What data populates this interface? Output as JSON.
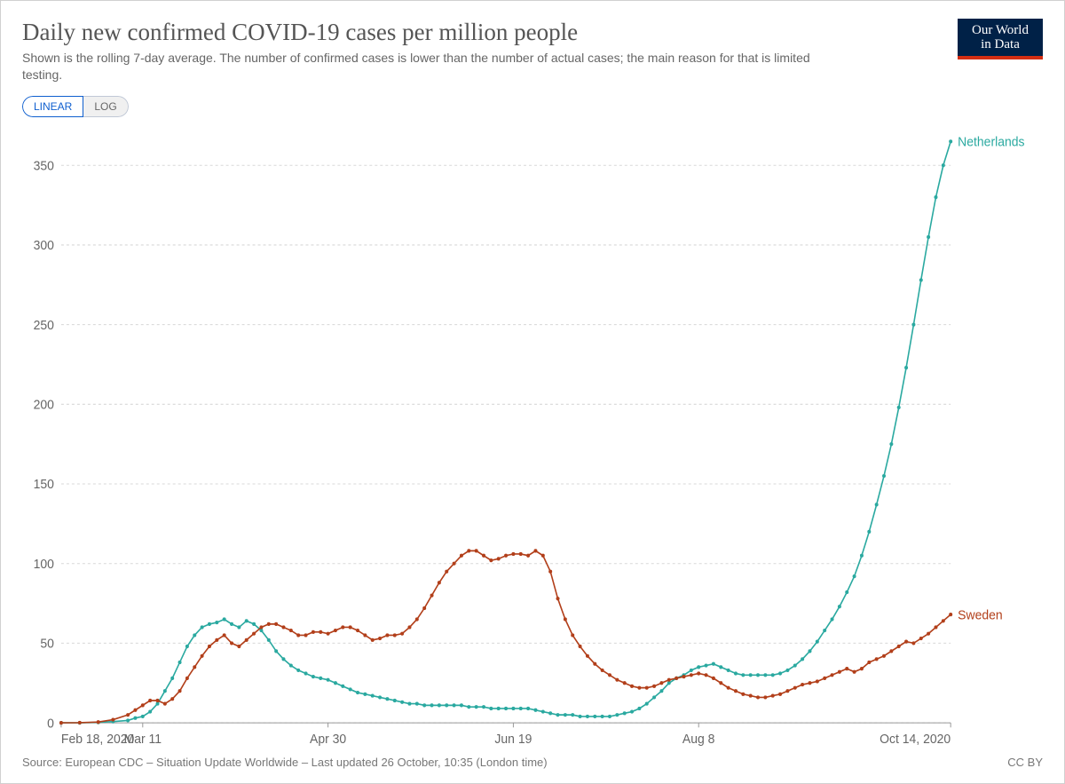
{
  "header": {
    "title": "Daily new confirmed COVID-19 cases per million people",
    "subtitle": "Shown is the rolling 7-day average. The number of confirmed cases is lower than the number of actual cases; the main reason for that is limited testing.",
    "logo_line1": "Our World",
    "logo_line2": "in Data"
  },
  "controls": {
    "scale_options": [
      "LINEAR",
      "LOG"
    ],
    "scale_active": "LINEAR"
  },
  "chart": {
    "type": "line",
    "background_color": "#ffffff",
    "grid_color": "#d8d8d8",
    "axis_text_color": "#666666",
    "axis_fontsize": 14,
    "line_width": 1.6,
    "marker_radius": 2.0,
    "y": {
      "min": 0,
      "max": 370,
      "ticks": [
        0,
        50,
        100,
        150,
        200,
        250,
        300,
        350
      ]
    },
    "x": {
      "min": 0,
      "max": 240,
      "ticks": [
        {
          "pos": 0,
          "label": "Feb 18, 2020"
        },
        {
          "pos": 22,
          "label": "Mar 11"
        },
        {
          "pos": 72,
          "label": "Apr 30"
        },
        {
          "pos": 122,
          "label": "Jun 19"
        },
        {
          "pos": 172,
          "label": "Aug 8"
        },
        {
          "pos": 240,
          "label": "Oct 14, 2020"
        }
      ]
    },
    "series": [
      {
        "name": "Netherlands",
        "color": "#2aa9a0",
        "label_color": "#2aa9a0",
        "data": [
          [
            0,
            0
          ],
          [
            5,
            0
          ],
          [
            10,
            0.3
          ],
          [
            14,
            0.8
          ],
          [
            18,
            1.5
          ],
          [
            20,
            3
          ],
          [
            22,
            4
          ],
          [
            24,
            7
          ],
          [
            26,
            12
          ],
          [
            28,
            20
          ],
          [
            30,
            28
          ],
          [
            32,
            38
          ],
          [
            34,
            48
          ],
          [
            36,
            55
          ],
          [
            38,
            60
          ],
          [
            40,
            62
          ],
          [
            42,
            63
          ],
          [
            44,
            65
          ],
          [
            46,
            62
          ],
          [
            48,
            60
          ],
          [
            50,
            64
          ],
          [
            52,
            62
          ],
          [
            54,
            58
          ],
          [
            56,
            52
          ],
          [
            58,
            45
          ],
          [
            60,
            40
          ],
          [
            62,
            36
          ],
          [
            64,
            33
          ],
          [
            66,
            31
          ],
          [
            68,
            29
          ],
          [
            70,
            28
          ],
          [
            72,
            27
          ],
          [
            74,
            25
          ],
          [
            76,
            23
          ],
          [
            78,
            21
          ],
          [
            80,
            19
          ],
          [
            82,
            18
          ],
          [
            84,
            17
          ],
          [
            86,
            16
          ],
          [
            88,
            15
          ],
          [
            90,
            14
          ],
          [
            92,
            13
          ],
          [
            94,
            12
          ],
          [
            96,
            12
          ],
          [
            98,
            11
          ],
          [
            100,
            11
          ],
          [
            102,
            11
          ],
          [
            104,
            11
          ],
          [
            106,
            11
          ],
          [
            108,
            11
          ],
          [
            110,
            10
          ],
          [
            112,
            10
          ],
          [
            114,
            10
          ],
          [
            116,
            9
          ],
          [
            118,
            9
          ],
          [
            120,
            9
          ],
          [
            122,
            9
          ],
          [
            124,
            9
          ],
          [
            126,
            9
          ],
          [
            128,
            8
          ],
          [
            130,
            7
          ],
          [
            132,
            6
          ],
          [
            134,
            5
          ],
          [
            136,
            5
          ],
          [
            138,
            5
          ],
          [
            140,
            4
          ],
          [
            142,
            4
          ],
          [
            144,
            4
          ],
          [
            146,
            4
          ],
          [
            148,
            4
          ],
          [
            150,
            5
          ],
          [
            152,
            6
          ],
          [
            154,
            7
          ],
          [
            156,
            9
          ],
          [
            158,
            12
          ],
          [
            160,
            16
          ],
          [
            162,
            20
          ],
          [
            164,
            25
          ],
          [
            166,
            28
          ],
          [
            168,
            30
          ],
          [
            170,
            33
          ],
          [
            172,
            35
          ],
          [
            174,
            36
          ],
          [
            176,
            37
          ],
          [
            178,
            35
          ],
          [
            180,
            33
          ],
          [
            182,
            31
          ],
          [
            184,
            30
          ],
          [
            186,
            30
          ],
          [
            188,
            30
          ],
          [
            190,
            30
          ],
          [
            192,
            30
          ],
          [
            194,
            31
          ],
          [
            196,
            33
          ],
          [
            198,
            36
          ],
          [
            200,
            40
          ],
          [
            202,
            45
          ],
          [
            204,
            51
          ],
          [
            206,
            58
          ],
          [
            208,
            65
          ],
          [
            210,
            73
          ],
          [
            212,
            82
          ],
          [
            214,
            92
          ],
          [
            216,
            105
          ],
          [
            218,
            120
          ],
          [
            220,
            137
          ],
          [
            222,
            155
          ],
          [
            224,
            175
          ],
          [
            226,
            198
          ],
          [
            228,
            223
          ],
          [
            230,
            250
          ],
          [
            232,
            278
          ],
          [
            234,
            305
          ],
          [
            236,
            330
          ],
          [
            238,
            350
          ],
          [
            240,
            365
          ]
        ]
      },
      {
        "name": "Sweden",
        "color": "#b23f1a",
        "label_color": "#b23f1a",
        "data": [
          [
            0,
            0
          ],
          [
            5,
            0.1
          ],
          [
            10,
            0.5
          ],
          [
            14,
            2
          ],
          [
            18,
            5
          ],
          [
            20,
            8
          ],
          [
            22,
            11
          ],
          [
            24,
            14
          ],
          [
            26,
            14
          ],
          [
            28,
            12
          ],
          [
            30,
            15
          ],
          [
            32,
            20
          ],
          [
            34,
            28
          ],
          [
            36,
            35
          ],
          [
            38,
            42
          ],
          [
            40,
            48
          ],
          [
            42,
            52
          ],
          [
            44,
            55
          ],
          [
            46,
            50
          ],
          [
            48,
            48
          ],
          [
            50,
            52
          ],
          [
            52,
            56
          ],
          [
            54,
            60
          ],
          [
            56,
            62
          ],
          [
            58,
            62
          ],
          [
            60,
            60
          ],
          [
            62,
            58
          ],
          [
            64,
            55
          ],
          [
            66,
            55
          ],
          [
            68,
            57
          ],
          [
            70,
            57
          ],
          [
            72,
            56
          ],
          [
            74,
            58
          ],
          [
            76,
            60
          ],
          [
            78,
            60
          ],
          [
            80,
            58
          ],
          [
            82,
            55
          ],
          [
            84,
            52
          ],
          [
            86,
            53
          ],
          [
            88,
            55
          ],
          [
            90,
            55
          ],
          [
            92,
            56
          ],
          [
            94,
            60
          ],
          [
            96,
            65
          ],
          [
            98,
            72
          ],
          [
            100,
            80
          ],
          [
            102,
            88
          ],
          [
            104,
            95
          ],
          [
            106,
            100
          ],
          [
            108,
            105
          ],
          [
            110,
            108
          ],
          [
            112,
            108
          ],
          [
            114,
            105
          ],
          [
            116,
            102
          ],
          [
            118,
            103
          ],
          [
            120,
            105
          ],
          [
            122,
            106
          ],
          [
            124,
            106
          ],
          [
            126,
            105
          ],
          [
            128,
            108
          ],
          [
            130,
            105
          ],
          [
            132,
            95
          ],
          [
            134,
            78
          ],
          [
            136,
            65
          ],
          [
            138,
            55
          ],
          [
            140,
            48
          ],
          [
            142,
            42
          ],
          [
            144,
            37
          ],
          [
            146,
            33
          ],
          [
            148,
            30
          ],
          [
            150,
            27
          ],
          [
            152,
            25
          ],
          [
            154,
            23
          ],
          [
            156,
            22
          ],
          [
            158,
            22
          ],
          [
            160,
            23
          ],
          [
            162,
            25
          ],
          [
            164,
            27
          ],
          [
            166,
            28
          ],
          [
            168,
            29
          ],
          [
            170,
            30
          ],
          [
            172,
            31
          ],
          [
            174,
            30
          ],
          [
            176,
            28
          ],
          [
            178,
            25
          ],
          [
            180,
            22
          ],
          [
            182,
            20
          ],
          [
            184,
            18
          ],
          [
            186,
            17
          ],
          [
            188,
            16
          ],
          [
            190,
            16
          ],
          [
            192,
            17
          ],
          [
            194,
            18
          ],
          [
            196,
            20
          ],
          [
            198,
            22
          ],
          [
            200,
            24
          ],
          [
            202,
            25
          ],
          [
            204,
            26
          ],
          [
            206,
            28
          ],
          [
            208,
            30
          ],
          [
            210,
            32
          ],
          [
            212,
            34
          ],
          [
            214,
            32
          ],
          [
            216,
            34
          ],
          [
            218,
            38
          ],
          [
            220,
            40
          ],
          [
            222,
            42
          ],
          [
            224,
            45
          ],
          [
            226,
            48
          ],
          [
            228,
            51
          ],
          [
            230,
            50
          ],
          [
            232,
            53
          ],
          [
            234,
            56
          ],
          [
            236,
            60
          ],
          [
            238,
            64
          ],
          [
            240,
            68
          ]
        ]
      }
    ]
  },
  "footer": {
    "source": "Source: European CDC – Situation Update Worldwide – Last updated 26 October, 10:35 (London time)",
    "license": "CC BY"
  }
}
